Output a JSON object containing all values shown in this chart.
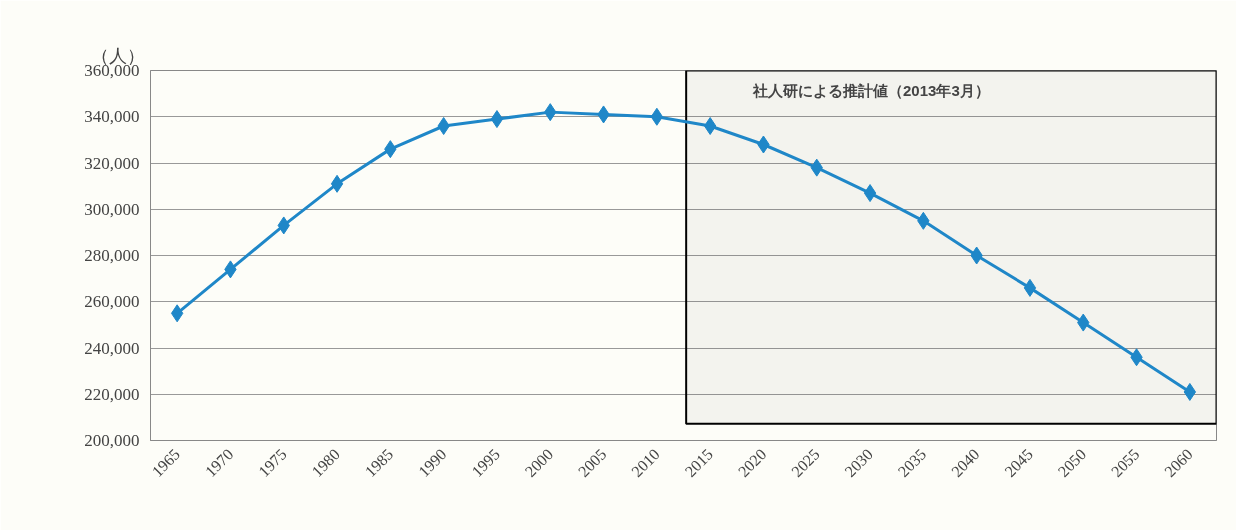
{
  "chart_data": {
    "type": "line",
    "ylabel": "（人）",
    "categories": [
      "1965",
      "1970",
      "1975",
      "1980",
      "1985",
      "1990",
      "1995",
      "2000",
      "2005",
      "2010",
      "2015",
      "2020",
      "2025",
      "2030",
      "2035",
      "2040",
      "2045",
      "2050",
      "2055",
      "2060"
    ],
    "series": [
      {
        "color": "#1f87c8",
        "values": [
          255000,
          274000,
          293000,
          311000,
          326000,
          336000,
          339000,
          342000,
          341000,
          340000,
          336000,
          328000,
          318000,
          307000,
          295000,
          280000,
          266000,
          251000,
          236000,
          221000
        ]
      }
    ],
    "ylim": [
      200000,
      360000
    ],
    "yticks": [
      {
        "value": 200000,
        "label": "200,000"
      },
      {
        "value": 220000,
        "label": "220,000"
      },
      {
        "value": 240000,
        "label": "240,000"
      },
      {
        "value": 260000,
        "label": "260,000"
      },
      {
        "value": 280000,
        "label": "280,000"
      },
      {
        "value": 300000,
        "label": "300,000"
      },
      {
        "value": 320000,
        "label": "320,000"
      },
      {
        "value": 340000,
        "label": "340,000"
      },
      {
        "value": 360000,
        "label": "360,000"
      }
    ],
    "bands": [
      {
        "axis": "x",
        "from": "2015",
        "to": "2060",
        "label": "社人研による推計値（2013年3月）",
        "color": "#000000"
      }
    ],
    "grid": "y",
    "marker": "diamond",
    "line_style": "solid"
  }
}
